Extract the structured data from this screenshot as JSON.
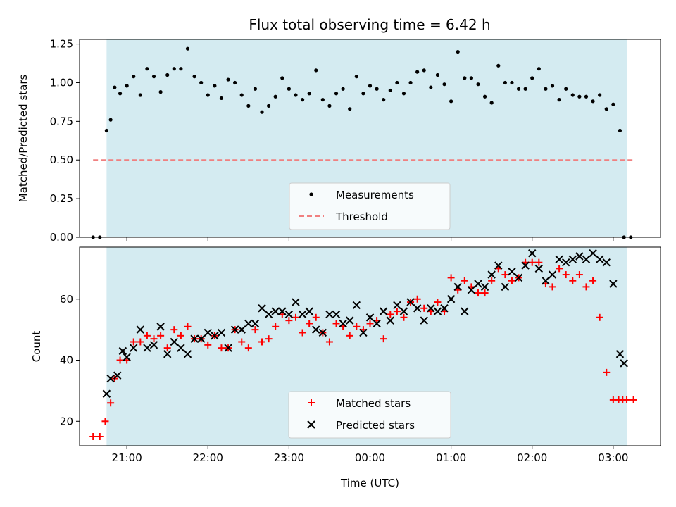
{
  "colors": {
    "observing_band": "#d4ebf1",
    "threshold": "#f08080",
    "measurements": "#000000",
    "matched": "#ff0000",
    "predicted": "#000000"
  },
  "chart_data": [
    {
      "type": "scatter",
      "title": "Flux total observing time = 6.42 h",
      "xlabel": "",
      "ylabel": "Matched/Predicted stars",
      "ylim": [
        0,
        1.28
      ],
      "xlim": [
        "20:25",
        "03:35"
      ],
      "yticks": [
        "0.00",
        "0.25",
        "0.50",
        "0.75",
        "1.00",
        "1.25"
      ],
      "legend_position": "lower center",
      "observing_window": [
        "20:45",
        "03:10"
      ],
      "threshold": {
        "name": "Threshold",
        "value": 0.5,
        "x_range": [
          "20:35",
          "03:15"
        ]
      },
      "series": [
        {
          "name": "Measurements",
          "x": [
            "20:35",
            "20:40",
            "20:45",
            "20:48",
            "20:51",
            "20:55",
            "21:00",
            "21:05",
            "21:10",
            "21:15",
            "21:20",
            "21:25",
            "21:30",
            "21:35",
            "21:40",
            "21:45",
            "21:50",
            "21:55",
            "22:00",
            "22:05",
            "22:10",
            "22:15",
            "22:20",
            "22:25",
            "22:30",
            "22:35",
            "22:40",
            "22:45",
            "22:50",
            "22:55",
            "23:00",
            "23:05",
            "23:10",
            "23:15",
            "23:20",
            "23:25",
            "23:30",
            "23:35",
            "23:40",
            "23:45",
            "23:50",
            "23:55",
            "00:00",
            "00:05",
            "00:10",
            "00:15",
            "00:20",
            "00:25",
            "00:30",
            "00:35",
            "00:40",
            "00:45",
            "00:50",
            "00:55",
            "01:00",
            "01:05",
            "01:10",
            "01:15",
            "01:20",
            "01:25",
            "01:30",
            "01:35",
            "01:40",
            "01:45",
            "01:50",
            "01:55",
            "02:00",
            "02:05",
            "02:10",
            "02:15",
            "02:20",
            "02:25",
            "02:30",
            "02:35",
            "02:40",
            "02:45",
            "02:50",
            "02:55",
            "03:00",
            "03:05",
            "03:08",
            "03:13"
          ],
          "values": [
            0.0,
            0.0,
            0.69,
            0.76,
            0.97,
            0.93,
            0.98,
            1.04,
            0.92,
            1.09,
            1.04,
            0.94,
            1.05,
            1.09,
            1.09,
            1.22,
            1.04,
            1.0,
            0.92,
            0.98,
            0.9,
            1.02,
            1.0,
            0.92,
            0.85,
            0.96,
            0.81,
            0.85,
            0.91,
            1.03,
            0.96,
            0.92,
            0.89,
            0.93,
            1.08,
            0.89,
            0.85,
            0.93,
            0.96,
            0.83,
            1.04,
            0.93,
            0.98,
            0.96,
            0.89,
            0.95,
            1.0,
            0.93,
            1.0,
            1.07,
            1.08,
            0.97,
            1.05,
            0.99,
            0.88,
            1.2,
            1.03,
            1.03,
            0.99,
            0.91,
            0.87,
            1.11,
            1.0,
            1.0,
            0.96,
            0.96,
            1.03,
            1.09,
            0.96,
            0.98,
            0.89,
            0.96,
            0.92,
            0.91,
            0.91,
            0.88,
            0.92,
            0.83,
            0.86,
            0.69,
            0.0,
            0.0
          ]
        }
      ]
    },
    {
      "type": "scatter",
      "title": "",
      "xlabel": "Time (UTC)",
      "ylabel": "Count",
      "ylim": [
        12,
        77
      ],
      "xlim": [
        "20:25",
        "03:35"
      ],
      "yticks": [
        "20",
        "40",
        "60"
      ],
      "xticks": [
        "21:00",
        "22:00",
        "23:00",
        "00:00",
        "01:00",
        "02:00",
        "03:00"
      ],
      "legend_position": "lower center",
      "observing_window": [
        "20:45",
        "03:10"
      ],
      "series": [
        {
          "name": "Matched stars",
          "marker": "plus",
          "x": [
            "20:35",
            "20:40",
            "20:44",
            "20:48",
            "20:51",
            "20:55",
            "21:00",
            "21:05",
            "21:10",
            "21:15",
            "21:20",
            "21:25",
            "21:30",
            "21:35",
            "21:40",
            "21:45",
            "21:50",
            "21:55",
            "22:00",
            "22:05",
            "22:10",
            "22:15",
            "22:20",
            "22:25",
            "22:30",
            "22:35",
            "22:40",
            "22:45",
            "22:50",
            "22:55",
            "23:00",
            "23:05",
            "23:10",
            "23:15",
            "23:20",
            "23:25",
            "23:30",
            "23:35",
            "23:40",
            "23:45",
            "23:50",
            "23:55",
            "00:00",
            "00:05",
            "00:10",
            "00:15",
            "00:20",
            "00:25",
            "00:30",
            "00:35",
            "00:40",
            "00:45",
            "00:50",
            "00:55",
            "01:00",
            "01:05",
            "01:10",
            "01:15",
            "01:20",
            "01:25",
            "01:30",
            "01:35",
            "01:40",
            "01:45",
            "01:50",
            "01:55",
            "02:00",
            "02:05",
            "02:10",
            "02:15",
            "02:20",
            "02:25",
            "02:30",
            "02:35",
            "02:40",
            "02:45",
            "02:50",
            "02:55",
            "03:00",
            "03:04",
            "03:07",
            "03:10",
            "03:15"
          ],
          "values": [
            15,
            15,
            20,
            26,
            34,
            40,
            40,
            46,
            46,
            48,
            47,
            48,
            44,
            50,
            48,
            51,
            47,
            47,
            45,
            48,
            44,
            44,
            50,
            46,
            44,
            50,
            46,
            47,
            51,
            55,
            53,
            54,
            49,
            52,
            54,
            49,
            46,
            52,
            51,
            48,
            51,
            50,
            52,
            53,
            47,
            55,
            56,
            54,
            59,
            60,
            57,
            56,
            59,
            56,
            67,
            63,
            66,
            64,
            62,
            62,
            66,
            70,
            68,
            66,
            67,
            72,
            72,
            72,
            65,
            64,
            70,
            68,
            66,
            68,
            64,
            66,
            54,
            36,
            27,
            27,
            27,
            27,
            27
          ],
          "note_count": "matched"
        },
        {
          "name": "Predicted stars",
          "marker": "x",
          "x": [
            "20:45",
            "20:48",
            "20:53",
            "20:57",
            "21:00",
            "21:05",
            "21:10",
            "21:15",
            "21:20",
            "21:25",
            "21:30",
            "21:35",
            "21:40",
            "21:45",
            "21:50",
            "21:55",
            "22:00",
            "22:05",
            "22:10",
            "22:15",
            "22:20",
            "22:25",
            "22:30",
            "22:35",
            "22:40",
            "22:45",
            "22:50",
            "22:55",
            "23:00",
            "23:05",
            "23:10",
            "23:15",
            "23:20",
            "23:25",
            "23:30",
            "23:35",
            "23:40",
            "23:45",
            "23:50",
            "23:55",
            "00:00",
            "00:05",
            "00:10",
            "00:15",
            "00:20",
            "00:25",
            "00:30",
            "00:35",
            "00:40",
            "00:45",
            "00:50",
            "00:55",
            "01:00",
            "01:05",
            "01:10",
            "01:15",
            "01:20",
            "01:25",
            "01:30",
            "01:35",
            "01:40",
            "01:45",
            "01:50",
            "01:55",
            "02:00",
            "02:05",
            "02:10",
            "02:15",
            "02:20",
            "02:25",
            "02:30",
            "02:35",
            "02:40",
            "02:45",
            "02:50",
            "02:55",
            "03:00",
            "03:05",
            "03:08"
          ],
          "values": [
            29,
            34,
            35,
            43,
            41,
            44,
            50,
            44,
            45,
            51,
            42,
            46,
            44,
            42,
            47,
            47,
            49,
            48,
            49,
            44,
            50,
            50,
            52,
            52,
            57,
            55,
            56,
            56,
            55,
            59,
            55,
            56,
            50,
            49,
            55,
            55,
            52,
            53,
            58,
            49,
            54,
            52,
            56,
            53,
            58,
            56,
            59,
            57,
            53,
            57,
            56,
            57,
            60,
            64,
            56,
            63,
            65,
            64,
            68,
            71,
            64,
            69,
            67,
            71,
            75,
            70,
            66,
            68,
            73,
            72,
            73,
            74,
            73,
            75,
            73,
            72,
            65,
            42,
            39
          ]
        }
      ]
    }
  ]
}
